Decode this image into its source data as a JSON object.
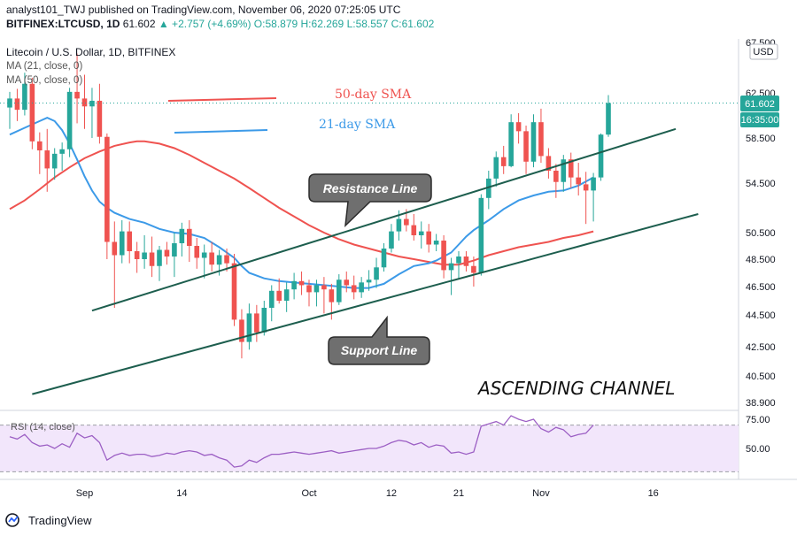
{
  "header": {
    "publish_line": "analyst101_TWJ published on TradingView.com, November 06, 2020 07:25:05 UTC",
    "symbol": "BITFINEX:LTCUSD, 1D",
    "last": "61.602",
    "change": "▲ +2.757 (+4.69%)",
    "o": "O:58.879",
    "h": "H:62.269",
    "l": "L:58.557",
    "c": "C:61.602"
  },
  "legend": {
    "title": "Litecoin / U.S. Dollar, 1D, BITFINEX",
    "ma21": "MA (21, close, 0)",
    "ma50": "MA (50, close, 0)"
  },
  "annotations": {
    "sma50": "50-day SMA",
    "sma21": "21-day SMA",
    "resistance": "Resistance Line",
    "support": "Support Line",
    "channel": "ASCENDING CHANNEL"
  },
  "price_badge": "61.602",
  "time_badge": "16:35:00",
  "currency": "USD",
  "rsi_label": "RSI (14, close)",
  "footer_brand": "TradingView",
  "colors": {
    "up": "#26a69a",
    "down": "#ef5350",
    "ma21": "#3c9ae8",
    "ma50": "#ef5350",
    "channel": "#1d5e4e",
    "rsi": "#9c5fc4",
    "rsi_band": "#f2e6fb"
  },
  "chart_data": {
    "type": "candlestick",
    "title": "Litecoin / U.S. Dollar, 1D, BITFINEX",
    "yaxis_ticks": [
      38.9,
      40.5,
      42.5,
      44.5,
      46.5,
      48.5,
      50.5,
      54.5,
      58.5,
      62.5,
      67.5
    ],
    "yaxis_tick_labels": [
      "38.900",
      "40.500",
      "42.500",
      "44.500",
      "46.500",
      "48.500",
      "50.500",
      "54.500",
      "58.500",
      "62.500",
      "67.500"
    ],
    "xaxis_ticks": [
      {
        "label": "Sep",
        "index": 24
      },
      {
        "label": "14",
        "index": 37
      },
      {
        "label": "Oct",
        "index": 54
      },
      {
        "label": "12",
        "index": 65
      },
      {
        "label": "21",
        "index": 74
      },
      {
        "label": "Nov",
        "index": 85
      },
      {
        "label": "16",
        "index": 100
      }
    ],
    "last_price": 61.602,
    "candles": [
      [
        61.2,
        62.6,
        59.3,
        62.0
      ],
      [
        62.0,
        62.9,
        60.0,
        61.0
      ],
      [
        61.0,
        64.5,
        60.5,
        63.4
      ],
      [
        63.4,
        64.0,
        57.5,
        58.2
      ],
      [
        58.2,
        59.0,
        55.3,
        57.4
      ],
      [
        57.4,
        59.3,
        53.8,
        55.8
      ],
      [
        55.8,
        57.6,
        54.8,
        57.1
      ],
      [
        57.1,
        58.1,
        55.6,
        57.5
      ],
      [
        57.5,
        63.0,
        56.8,
        62.6
      ],
      [
        62.6,
        66.4,
        59.8,
        62.0
      ],
      [
        62.0,
        64.3,
        59.3,
        61.3
      ],
      [
        61.3,
        63.0,
        58.5,
        61.8
      ],
      [
        61.8,
        63.4,
        58.0,
        58.6
      ],
      [
        58.6,
        58.9,
        48.5,
        49.8
      ],
      [
        49.8,
        51.4,
        45.0,
        48.8
      ],
      [
        48.8,
        51.5,
        48.2,
        50.6
      ],
      [
        50.6,
        51.4,
        48.2,
        49.1
      ],
      [
        49.1,
        49.8,
        47.5,
        48.5
      ],
      [
        48.5,
        50.3,
        47.8,
        49.0
      ],
      [
        49.0,
        50.2,
        47.2,
        48.0
      ],
      [
        48.0,
        49.5,
        46.9,
        49.2
      ],
      [
        49.2,
        49.8,
        48.1,
        48.7
      ],
      [
        48.7,
        50.5,
        47.2,
        49.7
      ],
      [
        49.7,
        51.3,
        48.7,
        50.8
      ],
      [
        50.8,
        51.5,
        48.3,
        49.5
      ],
      [
        49.5,
        50.1,
        47.8,
        48.6
      ],
      [
        48.6,
        49.6,
        47.1,
        49.0
      ],
      [
        49.0,
        49.8,
        47.6,
        48.1
      ],
      [
        48.1,
        49.2,
        47.3,
        48.8
      ],
      [
        48.8,
        49.3,
        47.6,
        48.2
      ],
      [
        48.2,
        48.9,
        43.8,
        44.2
      ],
      [
        44.2,
        44.9,
        41.7,
        42.8
      ],
      [
        42.8,
        45.3,
        42.3,
        44.6
      ],
      [
        44.6,
        45.2,
        42.8,
        43.4
      ],
      [
        43.4,
        45.5,
        43.2,
        45.0
      ],
      [
        45.0,
        46.6,
        44.1,
        46.2
      ],
      [
        46.2,
        47.1,
        45.3,
        45.5
      ],
      [
        45.5,
        46.8,
        44.7,
        46.3
      ],
      [
        46.3,
        47.5,
        45.6,
        46.9
      ],
      [
        46.9,
        47.6,
        45.9,
        46.6
      ],
      [
        46.6,
        47.0,
        45.1,
        46.1
      ],
      [
        46.1,
        47.0,
        45.1,
        46.6
      ],
      [
        46.6,
        47.2,
        44.6,
        46.3
      ],
      [
        46.3,
        46.7,
        44.2,
        45.4
      ],
      [
        45.4,
        47.4,
        45.2,
        47.0
      ],
      [
        47.0,
        47.6,
        46.1,
        46.6
      ],
      [
        46.6,
        47.3,
        45.6,
        46.1
      ],
      [
        46.1,
        47.2,
        45.7,
        46.8
      ],
      [
        46.8,
        47.7,
        46.2,
        47.0
      ],
      [
        47.0,
        48.6,
        46.4,
        47.9
      ],
      [
        47.9,
        49.7,
        47.6,
        49.3
      ],
      [
        49.3,
        51.2,
        49.0,
        50.6
      ],
      [
        50.6,
        52.3,
        49.9,
        51.6
      ],
      [
        51.6,
        52.4,
        50.6,
        51.1
      ],
      [
        51.1,
        52.0,
        49.9,
        50.3
      ],
      [
        50.3,
        51.4,
        49.3,
        50.6
      ],
      [
        50.6,
        51.2,
        49.0,
        49.6
      ],
      [
        49.6,
        50.4,
        49.1,
        49.9
      ],
      [
        49.9,
        50.3,
        47.1,
        47.7
      ],
      [
        47.7,
        48.6,
        45.9,
        48.2
      ],
      [
        48.2,
        49.1,
        47.1,
        48.7
      ],
      [
        48.7,
        49.1,
        47.6,
        48.0
      ],
      [
        48.0,
        48.7,
        46.5,
        47.5
      ],
      [
        47.5,
        53.6,
        47.3,
        53.3
      ],
      [
        53.3,
        55.6,
        52.4,
        54.9
      ],
      [
        54.9,
        57.3,
        54.2,
        56.8
      ],
      [
        56.8,
        57.8,
        55.3,
        56.0
      ],
      [
        56.0,
        60.6,
        55.9,
        59.9
      ],
      [
        59.9,
        60.7,
        58.0,
        59.1
      ],
      [
        59.1,
        59.6,
        55.3,
        56.4
      ],
      [
        56.4,
        60.6,
        55.9,
        59.9
      ],
      [
        59.9,
        61.1,
        56.3,
        56.9
      ],
      [
        56.9,
        57.6,
        54.9,
        55.6
      ],
      [
        55.6,
        56.2,
        53.3,
        54.6
      ],
      [
        54.6,
        57.0,
        53.8,
        56.6
      ],
      [
        56.6,
        57.2,
        54.1,
        55.0
      ],
      [
        55.0,
        56.3,
        53.5,
        54.4
      ],
      [
        54.4,
        55.5,
        51.2,
        53.9
      ],
      [
        53.9,
        55.4,
        51.4,
        55.0
      ],
      [
        55.0,
        58.9,
        54.7,
        58.8
      ],
      [
        58.8,
        62.3,
        58.6,
        61.6
      ]
    ],
    "first_index": 14,
    "ma21": [
      [
        14,
        58.8
      ],
      [
        16,
        59.4
      ],
      [
        18,
        60.0
      ],
      [
        19,
        60.3
      ],
      [
        20,
        60.0
      ],
      [
        21,
        59.2
      ],
      [
        22,
        58.0
      ],
      [
        23,
        56.6
      ],
      [
        24,
        55.1
      ],
      [
        25,
        53.9
      ],
      [
        26,
        53.0
      ],
      [
        27,
        52.5
      ],
      [
        28,
        52.1
      ],
      [
        30,
        51.6
      ],
      [
        32,
        51.3
      ],
      [
        34,
        50.8
      ],
      [
        36,
        50.5
      ],
      [
        38,
        50.4
      ],
      [
        40,
        50.1
      ],
      [
        42,
        49.4
      ],
      [
        44,
        48.6
      ],
      [
        45,
        48.0
      ],
      [
        46,
        47.5
      ],
      [
        48,
        47.1
      ],
      [
        50,
        46.9
      ],
      [
        52,
        46.8
      ],
      [
        54,
        46.7
      ],
      [
        56,
        46.6
      ],
      [
        58,
        46.5
      ],
      [
        60,
        46.4
      ],
      [
        62,
        46.4
      ],
      [
        64,
        46.7
      ],
      [
        66,
        47.4
      ],
      [
        68,
        48.0
      ],
      [
        70,
        48.2
      ],
      [
        71,
        48.4
      ],
      [
        73,
        49.0
      ],
      [
        74,
        49.6
      ],
      [
        75,
        50.2
      ],
      [
        76,
        50.7
      ],
      [
        78,
        51.5
      ],
      [
        80,
        52.4
      ],
      [
        82,
        53.1
      ],
      [
        84,
        53.5
      ],
      [
        86,
        53.8
      ],
      [
        88,
        53.9
      ],
      [
        90,
        54.3
      ],
      [
        92,
        55.0
      ]
    ],
    "ma50": [
      [
        14,
        52.4
      ],
      [
        16,
        53.1
      ],
      [
        18,
        54.0
      ],
      [
        20,
        55.0
      ],
      [
        22,
        55.9
      ],
      [
        24,
        56.7
      ],
      [
        26,
        57.3
      ],
      [
        28,
        57.8
      ],
      [
        30,
        58.1
      ],
      [
        31,
        58.2
      ],
      [
        32,
        58.2
      ],
      [
        34,
        58.0
      ],
      [
        36,
        57.6
      ],
      [
        38,
        57.0
      ],
      [
        40,
        56.3
      ],
      [
        42,
        55.6
      ],
      [
        44,
        54.9
      ],
      [
        46,
        54.1
      ],
      [
        48,
        53.3
      ],
      [
        50,
        52.5
      ],
      [
        52,
        51.8
      ],
      [
        54,
        51.1
      ],
      [
        56,
        50.5
      ],
      [
        58,
        50.0
      ],
      [
        60,
        49.6
      ],
      [
        62,
        49.3
      ],
      [
        64,
        49.0
      ],
      [
        66,
        48.7
      ],
      [
        68,
        48.5
      ],
      [
        70,
        48.3
      ],
      [
        72,
        48.1
      ],
      [
        74,
        48.1
      ],
      [
        76,
        48.4
      ],
      [
        78,
        48.8
      ],
      [
        80,
        49.1
      ],
      [
        82,
        49.4
      ],
      [
        84,
        49.6
      ],
      [
        86,
        49.8
      ],
      [
        88,
        50.1
      ],
      [
        90,
        50.3
      ],
      [
        92,
        50.6
      ]
    ],
    "resistance_line": [
      [
        25,
        44.8
      ],
      [
        103,
        59.3
      ]
    ],
    "support_line": [
      [
        17,
        39.4
      ],
      [
        106,
        52.0
      ]
    ],
    "rsi": {
      "ticks": [
        50,
        75
      ],
      "tick_labels": [
        "50.00",
        "75.00"
      ],
      "band": [
        30,
        70
      ],
      "values": [
        [
          14,
          60
        ],
        [
          15,
          58
        ],
        [
          16,
          62
        ],
        [
          17,
          55
        ],
        [
          18,
          52
        ],
        [
          19,
          53
        ],
        [
          20,
          50
        ],
        [
          21,
          54
        ],
        [
          22,
          51
        ],
        [
          23,
          63
        ],
        [
          24,
          59
        ],
        [
          25,
          61
        ],
        [
          26,
          55
        ],
        [
          27,
          40
        ],
        [
          28,
          44
        ],
        [
          29,
          46
        ],
        [
          30,
          44
        ],
        [
          31,
          45
        ],
        [
          32,
          45
        ],
        [
          33,
          43
        ],
        [
          34,
          44
        ],
        [
          35,
          46
        ],
        [
          36,
          45
        ],
        [
          37,
          47
        ],
        [
          38,
          48
        ],
        [
          39,
          47
        ],
        [
          40,
          44
        ],
        [
          41,
          45
        ],
        [
          42,
          42
        ],
        [
          43,
          40
        ],
        [
          44,
          34
        ],
        [
          45,
          35
        ],
        [
          46,
          40
        ],
        [
          47,
          38
        ],
        [
          48,
          42
        ],
        [
          49,
          45
        ],
        [
          50,
          45
        ],
        [
          51,
          46
        ],
        [
          52,
          47
        ],
        [
          53,
          46
        ],
        [
          54,
          45
        ],
        [
          55,
          46
        ],
        [
          56,
          47
        ],
        [
          57,
          48
        ],
        [
          58,
          46
        ],
        [
          59,
          47
        ],
        [
          60,
          48
        ],
        [
          61,
          49
        ],
        [
          62,
          50
        ],
        [
          63,
          50
        ],
        [
          64,
          52
        ],
        [
          65,
          55
        ],
        [
          66,
          57
        ],
        [
          67,
          56
        ],
        [
          68,
          53
        ],
        [
          69,
          55
        ],
        [
          70,
          51
        ],
        [
          71,
          53
        ],
        [
          72,
          52
        ],
        [
          73,
          46
        ],
        [
          74,
          47
        ],
        [
          75,
          45
        ],
        [
          76,
          47
        ],
        [
          77,
          69
        ],
        [
          78,
          71
        ],
        [
          79,
          73
        ],
        [
          80,
          70
        ],
        [
          81,
          78
        ],
        [
          82,
          75
        ],
        [
          83,
          73
        ],
        [
          84,
          75
        ],
        [
          85,
          67
        ],
        [
          86,
          64
        ],
        [
          87,
          68
        ],
        [
          88,
          66
        ],
        [
          89,
          60
        ],
        [
          90,
          62
        ],
        [
          91,
          63
        ],
        [
          92,
          70
        ]
      ]
    }
  }
}
